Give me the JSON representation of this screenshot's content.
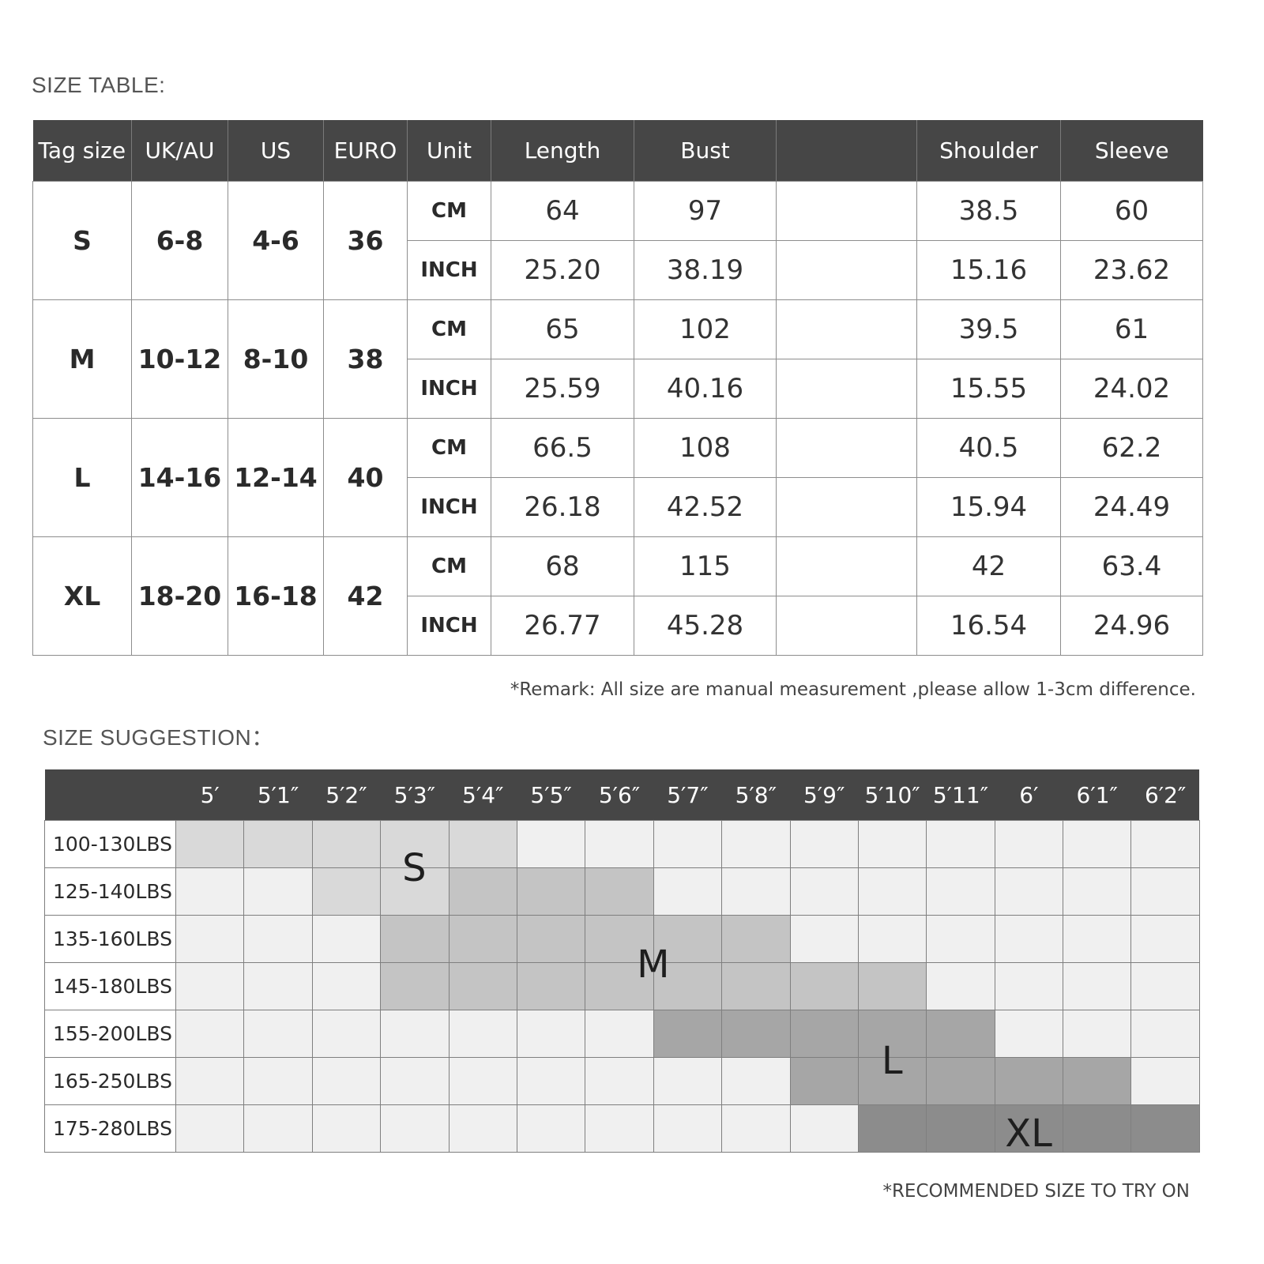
{
  "size_table": {
    "title": "SIZE TABLE:",
    "headers": [
      "Tag size",
      "UK/AU",
      "US",
      "EURO",
      "Unit",
      "Length",
      "Bust",
      "",
      "Shoulder",
      "Sleeve"
    ],
    "rows": [
      {
        "tag": "S",
        "ukau": "6-8",
        "us": "4-6",
        "euro": "36",
        "cm": {
          "unit": "CM",
          "length": "64",
          "bust": "97",
          "blank": "",
          "shoulder": "38.5",
          "sleeve": "60"
        },
        "inch": {
          "unit": "INCH",
          "length": "25.20",
          "bust": "38.19",
          "blank": "",
          "shoulder": "15.16",
          "sleeve": "23.62"
        }
      },
      {
        "tag": "M",
        "ukau": "10-12",
        "us": "8-10",
        "euro": "38",
        "cm": {
          "unit": "CM",
          "length": "65",
          "bust": "102",
          "blank": "",
          "shoulder": "39.5",
          "sleeve": "61"
        },
        "inch": {
          "unit": "INCH",
          "length": "25.59",
          "bust": "40.16",
          "blank": "",
          "shoulder": "15.55",
          "sleeve": "24.02"
        }
      },
      {
        "tag": "L",
        "ukau": "14-16",
        "us": "12-14",
        "euro": "40",
        "cm": {
          "unit": "CM",
          "length": "66.5",
          "bust": "108",
          "blank": "",
          "shoulder": "40.5",
          "sleeve": "62.2"
        },
        "inch": {
          "unit": "INCH",
          "length": "26.18",
          "bust": "42.52",
          "blank": "",
          "shoulder": "15.94",
          "sleeve": "24.49"
        }
      },
      {
        "tag": "XL",
        "ukau": "18-20",
        "us": "16-18",
        "euro": "42",
        "cm": {
          "unit": "CM",
          "length": "68",
          "bust": "115",
          "blank": "",
          "shoulder": "42",
          "sleeve": "63.4"
        },
        "inch": {
          "unit": "INCH",
          "length": "26.77",
          "bust": "45.28",
          "blank": "",
          "shoulder": "16.54",
          "sleeve": "24.96"
        }
      }
    ],
    "remark": "*Remark: All size are manual measurement ,please allow 1-3cm difference."
  },
  "size_suggestion": {
    "title": "SIZE SUGGESTION：",
    "heights": [
      "5′",
      "5′1″",
      "5′2″",
      "5′3″",
      "5′4″",
      "5′5″",
      "5′6″",
      "5′7″",
      "5′8″",
      "5′9″",
      "5′10″",
      "5′11″",
      "6′",
      "6′1″",
      "6′2″"
    ],
    "weights": [
      "100-130LBS",
      "125-140LBS",
      "135-160LBS",
      "145-180LBS",
      "155-200LBS",
      "165-250LBS",
      "175-280LBS"
    ],
    "zones": {
      "S": {
        "label": "S",
        "color": "#d9d9d9"
      },
      "M": {
        "label": "M",
        "color": "#c4c4c4"
      },
      "L": {
        "label": "L",
        "color": "#a6a6a6"
      },
      "XL": {
        "label": "XL",
        "color": "#8c8c8c"
      },
      "none": {
        "color": "#f0f0f0"
      }
    },
    "grid": [
      [
        "S",
        "S",
        "S",
        "S",
        "S",
        "",
        "",
        "",
        "",
        "",
        "",
        "",
        "",
        "",
        ""
      ],
      [
        "",
        "",
        "S",
        "S",
        "M",
        "M",
        "M",
        "",
        "",
        "",
        "",
        "",
        "",
        "",
        ""
      ],
      [
        "",
        "",
        "",
        "M",
        "M",
        "M",
        "M",
        "M",
        "M",
        "",
        "",
        "",
        "",
        "",
        ""
      ],
      [
        "",
        "",
        "",
        "M",
        "M",
        "M",
        "M",
        "M",
        "M",
        "M",
        "M",
        "",
        "",
        "",
        ""
      ],
      [
        "",
        "",
        "",
        "",
        "",
        "",
        "",
        "L",
        "L",
        "L",
        "L",
        "L",
        "",
        "",
        ""
      ],
      [
        "",
        "",
        "",
        "",
        "",
        "",
        "",
        "",
        "",
        "L",
        "L",
        "L",
        "L",
        "L",
        ""
      ],
      [
        "",
        "",
        "",
        "",
        "",
        "",
        "",
        "",
        "",
        "",
        "XL",
        "XL",
        "XL",
        "XL",
        "XL"
      ]
    ],
    "footnote": "*RECOMMENDED SIZE TO TRY ON"
  }
}
